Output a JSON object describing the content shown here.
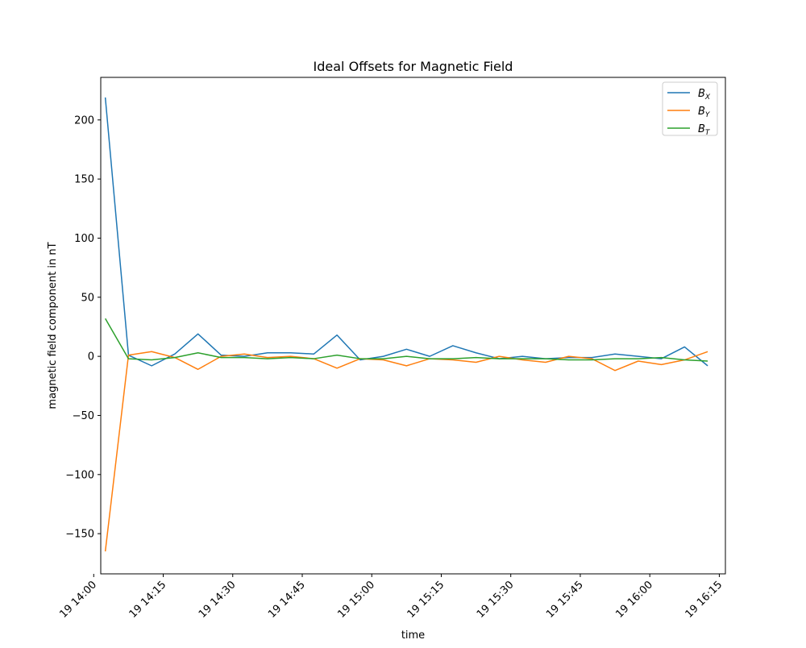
{
  "chart_data": {
    "type": "line",
    "title": "Ideal Offsets for Magnetic Field",
    "xlabel": "time",
    "ylabel": "magnetic field component in nT",
    "ylim": [
      -184,
      236
    ],
    "xlim": [
      "19 14:01:31",
      "19 16:16:19"
    ],
    "grid": false,
    "legend_position": "top-right",
    "x_ticks": [
      {
        "t": "19 14:00",
        "label": "19 14:00"
      },
      {
        "t": "19 14:15",
        "label": "19 14:15"
      },
      {
        "t": "19 14:30",
        "label": "19 14:30"
      },
      {
        "t": "19 14:45",
        "label": "19 14:45"
      },
      {
        "t": "19 15:00",
        "label": "19 15:00"
      },
      {
        "t": "19 15:15",
        "label": "19 15:15"
      },
      {
        "t": "19 15:30",
        "label": "19 15:30"
      },
      {
        "t": "19 15:45",
        "label": "19 15:45"
      },
      {
        "t": "19 16:00",
        "label": "19 16:00"
      },
      {
        "t": "19 16:15",
        "label": "19 16:15"
      }
    ],
    "y_ticks": [
      200,
      150,
      100,
      50,
      0,
      -50,
      -100,
      -150
    ],
    "y_tick_labels": [
      "200",
      "150",
      "100",
      "50",
      "0",
      "−50",
      "−100",
      "−150"
    ],
    "x": [
      "19 14:02:30",
      "19 14:07:30",
      "19 14:12:30",
      "19 14:17:30",
      "19 14:22:30",
      "19 14:27:30",
      "19 14:32:30",
      "19 14:37:30",
      "19 14:42:30",
      "19 14:47:30",
      "19 14:52:30",
      "19 14:57:30",
      "19 15:02:30",
      "19 15:07:30",
      "19 15:12:30",
      "19 15:17:30",
      "19 15:22:30",
      "19 15:27:30",
      "19 15:32:30",
      "19 15:37:30",
      "19 15:42:30",
      "19 15:47:30",
      "19 15:52:30",
      "19 15:57:30",
      "19 16:02:30",
      "19 16:07:30",
      "19 16:12:30"
    ],
    "series": [
      {
        "name": "B_X",
        "legend_main": "B",
        "legend_sub": "X",
        "color": "#1f77b4",
        "values": [
          219,
          1,
          -8,
          2,
          19,
          1,
          0,
          3,
          3,
          2,
          18,
          -3,
          0,
          6,
          0,
          9,
          3,
          -2,
          0,
          -2,
          -1,
          -1,
          2,
          0,
          -2,
          8,
          -8
        ]
      },
      {
        "name": "B_Y",
        "legend_main": "B",
        "legend_sub": "Y",
        "color": "#ff7f0e",
        "values": [
          -165,
          1,
          4,
          -1,
          -11,
          0,
          2,
          -1,
          0,
          -2,
          -10,
          -2,
          -3,
          -8,
          -2,
          -3,
          -5,
          0,
          -3,
          -5,
          0,
          -2,
          -12,
          -4,
          -7,
          -3,
          4
        ]
      },
      {
        "name": "B_T",
        "legend_main": "B",
        "legend_sub": "T",
        "color": "#2ca02c",
        "values": [
          32,
          -2,
          -3,
          -1,
          3,
          -1,
          -1,
          -2,
          -1,
          -2,
          1,
          -2,
          -2,
          0,
          -2,
          -2,
          -1,
          -2,
          -2,
          -2,
          -3,
          -3,
          -2,
          -2,
          -1,
          -3,
          -4
        ]
      }
    ]
  }
}
